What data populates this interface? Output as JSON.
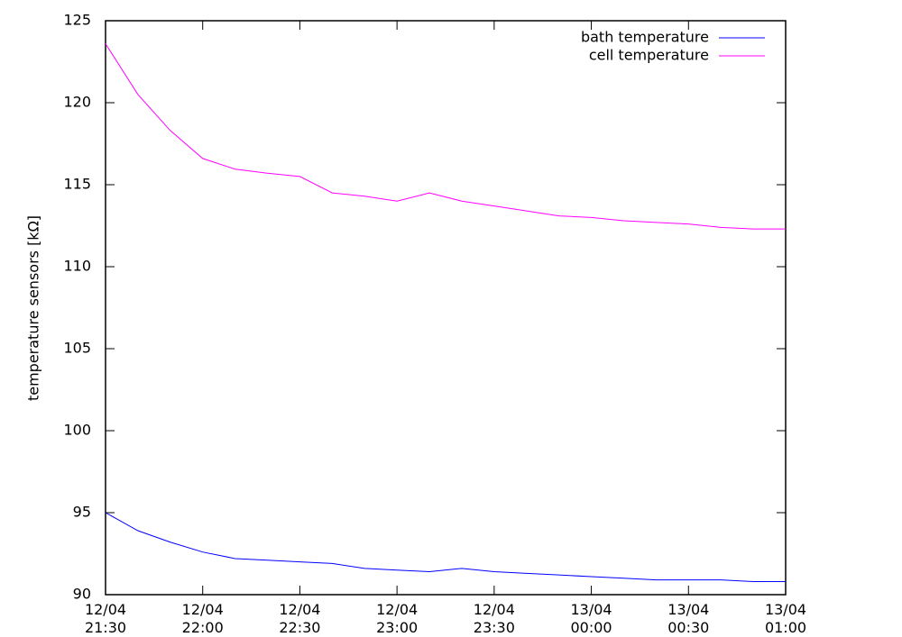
{
  "chart_data": {
    "type": "line",
    "ylabel": "temperature sensors [kΩ]",
    "x": [
      "12/04 21:30",
      "12/04 21:40",
      "12/04 21:50",
      "12/04 22:00",
      "12/04 22:10",
      "12/04 22:20",
      "12/04 22:30",
      "12/04 22:40",
      "12/04 22:50",
      "12/04 23:00",
      "12/04 23:10",
      "12/04 23:20",
      "12/04 23:30",
      "12/04 23:40",
      "12/04 23:50",
      "13/04 00:00",
      "13/04 00:10",
      "13/04 00:20",
      "13/04 00:30",
      "13/04 00:40",
      "13/04 00:50",
      "13/04 01:00"
    ],
    "series": [
      {
        "name": "bath temperature",
        "color": "#0000ff",
        "values": [
          95.0,
          93.9,
          93.2,
          92.6,
          92.2,
          92.1,
          92.0,
          91.9,
          91.6,
          91.5,
          91.4,
          91.6,
          91.4,
          91.3,
          91.2,
          91.1,
          91.0,
          90.9,
          90.9,
          90.9,
          90.8,
          90.8
        ]
      },
      {
        "name": "cell temperature",
        "color": "#ff00ff",
        "values": [
          123.6,
          120.5,
          118.3,
          116.6,
          115.95,
          115.7,
          115.5,
          114.5,
          114.3,
          114.0,
          114.5,
          114.0,
          113.7,
          113.4,
          113.1,
          113.0,
          112.8,
          112.7,
          112.6,
          112.4,
          112.3,
          112.3
        ]
      }
    ],
    "xlim": [
      "12/04 21:30",
      "13/04 01:00"
    ],
    "xticks": [
      {
        "value": "12/04 21:30",
        "label": "12/04\n21:30"
      },
      {
        "value": "12/04 22:00",
        "label": "12/04\n22:00"
      },
      {
        "value": "12/04 22:30",
        "label": "12/04\n22:30"
      },
      {
        "value": "12/04 23:00",
        "label": "12/04\n23:00"
      },
      {
        "value": "12/04 23:30",
        "label": "12/04\n23:30"
      },
      {
        "value": "13/04 00:00",
        "label": "13/04\n00:00"
      },
      {
        "value": "13/04 00:30",
        "label": "13/04\n00:30"
      },
      {
        "value": "13/04 01:00",
        "label": "13/04\n01:00"
      }
    ],
    "ylim": [
      90,
      125
    ],
    "yticks": [
      90,
      95,
      100,
      105,
      110,
      115,
      120,
      125
    ],
    "legend": "top-right"
  }
}
